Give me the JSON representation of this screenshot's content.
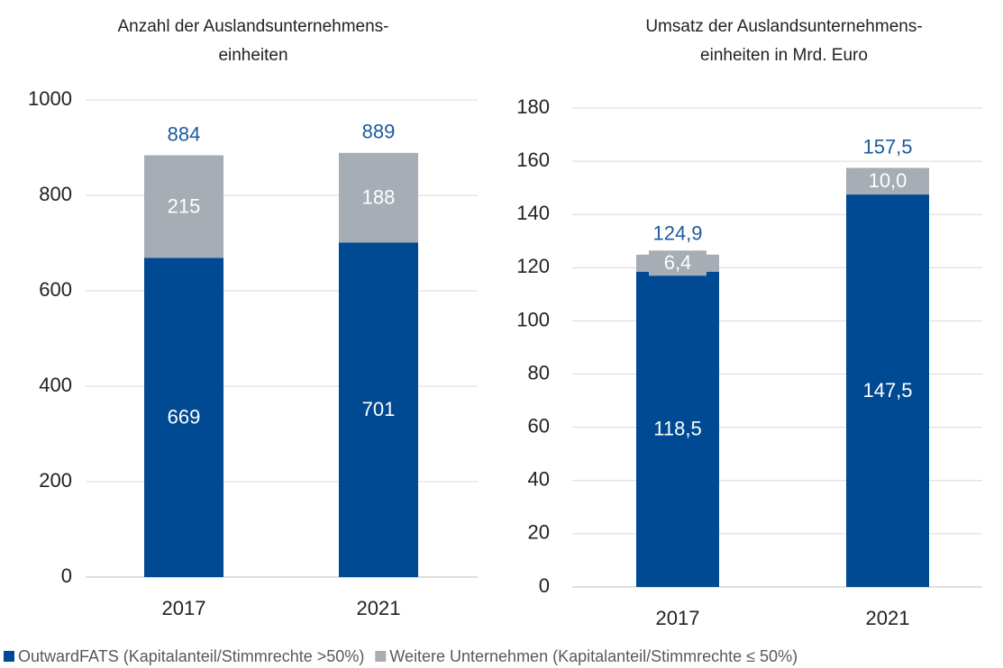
{
  "chart_data": [
    {
      "type": "bar",
      "stacked": true,
      "title": "Anzahl der Auslandsunternehmens-\neinheiten",
      "categories": [
        "2017",
        "2021"
      ],
      "series": [
        {
          "name": "OutwardFATS (Kapitalanteil/Stimmrechte >50%)",
          "color": "#004a93",
          "values": [
            669,
            701
          ]
        },
        {
          "name": "Weitere Unternehmen (Kapitalanteil/Stimmrechte ≤ 50%)",
          "color": "#a6adb4",
          "values": [
            215,
            188
          ]
        }
      ],
      "totals": [
        884,
        889
      ],
      "ylim": [
        0,
        1000
      ],
      "yticks": [
        0,
        200,
        400,
        600,
        800,
        1000
      ],
      "grid": true
    },
    {
      "type": "bar",
      "stacked": true,
      "title": "Umsatz der Auslandsunternehmens-\neinheiten in Mrd. Euro",
      "categories": [
        "2017",
        "2021"
      ],
      "series": [
        {
          "color": "#004a93",
          "values": [
            118.5,
            147.5
          ],
          "value_labels": [
            "118,5",
            "147,5"
          ]
        },
        {
          "color": "#a6adb4",
          "values": [
            6.4,
            10.0
          ],
          "value_labels": [
            "6,4",
            "10,0"
          ]
        }
      ],
      "totals": [
        124.9,
        157.5
      ],
      "total_labels": [
        "124,9",
        "157,5"
      ],
      "ylim": [
        0,
        180
      ],
      "yticks": [
        0,
        20,
        40,
        60,
        80,
        100,
        120,
        140,
        160,
        180
      ],
      "grid": true
    }
  ]
}
